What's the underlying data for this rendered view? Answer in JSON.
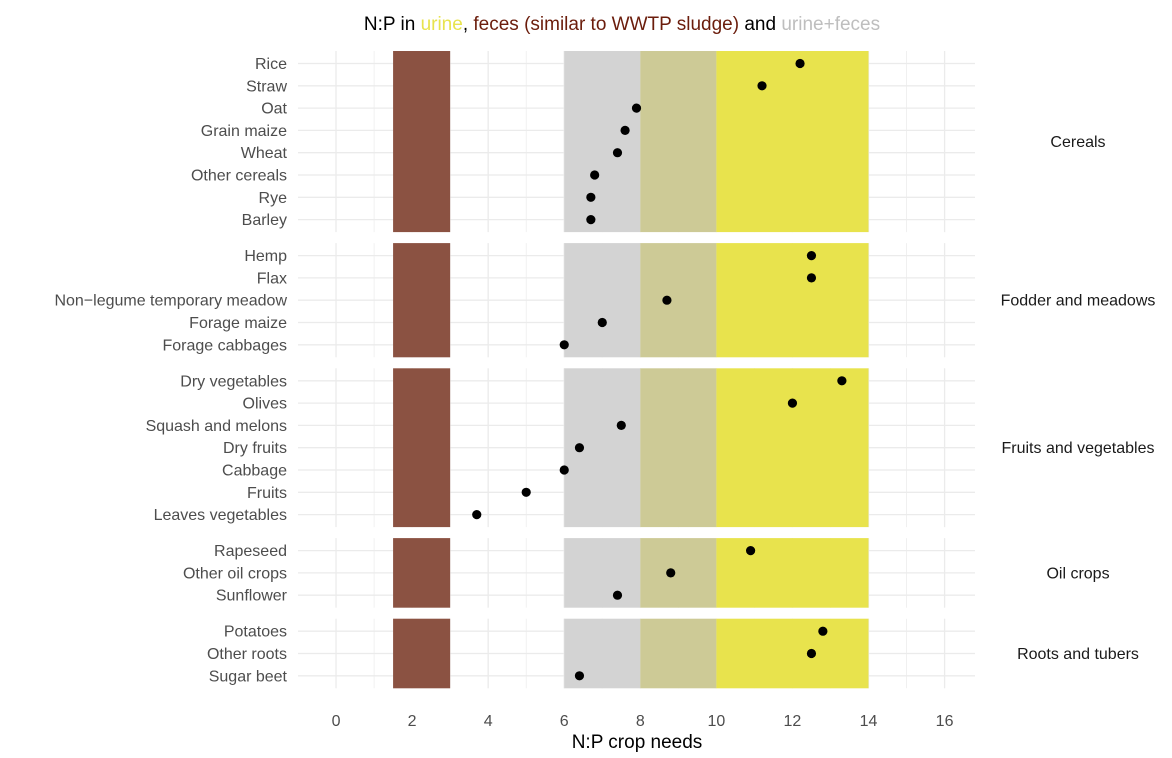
{
  "chart_data": {
    "type": "scatter",
    "title": {
      "prefix": "N:P in ",
      "urine_label": "urine",
      "separator": ", ",
      "feces_label": "feces (similar to WWTP sludge)",
      "and_label": " and ",
      "combined_label": "urine+feces"
    },
    "xlabel": "N:P crop needs",
    "ylabel": "",
    "xlim": [
      -1,
      16.8
    ],
    "x_ticks": [
      0,
      2,
      4,
      6,
      8,
      10,
      12,
      14,
      16
    ],
    "grid": true,
    "facet_labels_position": "right",
    "reference_bands": [
      {
        "name": "feces",
        "from": 1.5,
        "to": 3.0,
        "color": "#8b5242"
      },
      {
        "name": "urine+feces",
        "from": 6.0,
        "to": 8.0,
        "color": "#d3d3d3"
      },
      {
        "name": "overlap",
        "from": 8.0,
        "to": 10.0,
        "color": "#cdca96"
      },
      {
        "name": "urine",
        "from": 10.0,
        "to": 14.0,
        "color": "#e8e34d"
      }
    ],
    "facets": [
      {
        "name": "Cereals",
        "categories": [
          "Rice",
          "Straw",
          "Oat",
          "Grain maize",
          "Wheat",
          "Other cereals",
          "Rye",
          "Barley"
        ],
        "values": [
          12.2,
          11.2,
          7.9,
          7.6,
          7.4,
          6.8,
          6.7,
          6.7
        ]
      },
      {
        "name": "Fodder and meadows",
        "categories": [
          "Hemp",
          "Flax",
          "Non−legume temporary meadow",
          "Forage maize",
          "Forage cabbages"
        ],
        "values": [
          12.5,
          12.5,
          8.7,
          7.0,
          6.0
        ]
      },
      {
        "name": "Fruits and vegetables",
        "categories": [
          "Dry vegetables",
          "Olives",
          "Squash and melons",
          "Dry fruits",
          "Cabbage",
          "Fruits",
          "Leaves vegetables"
        ],
        "values": [
          13.3,
          12.0,
          7.5,
          6.4,
          6.0,
          5.0,
          3.7
        ]
      },
      {
        "name": "Oil crops",
        "categories": [
          "Rapeseed",
          "Other oil crops",
          "Sunflower"
        ],
        "values": [
          10.9,
          8.8,
          7.4
        ]
      },
      {
        "name": "Roots and tubers",
        "categories": [
          "Potatoes",
          "Other roots",
          "Sugar beet"
        ],
        "values": [
          12.8,
          12.5,
          6.4
        ]
      }
    ],
    "colors": {
      "urine": "#e8e34d",
      "feces": "#6b1d0c",
      "combined": "#bebebe",
      "point": "#000000",
      "grid": "#ebebeb"
    }
  }
}
